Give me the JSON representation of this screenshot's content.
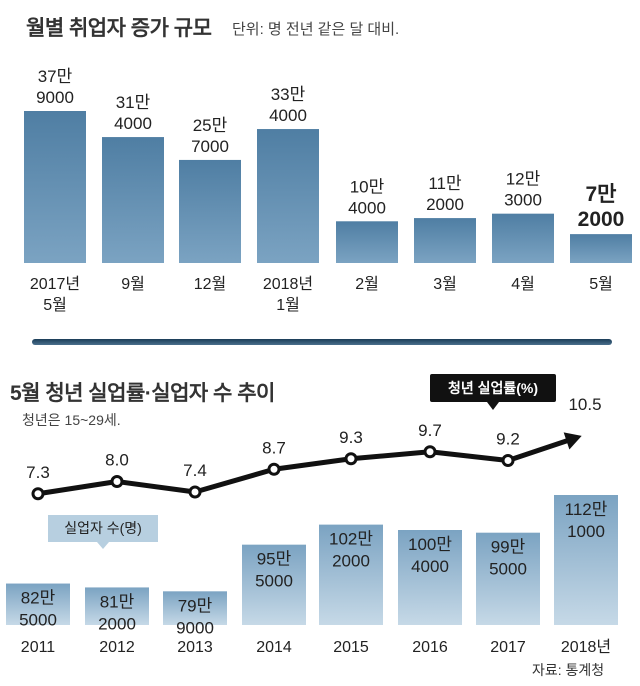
{
  "header": {
    "title": "월별 취업자 증가 규모",
    "unit": "단위: 명   전년 같은 달 대비."
  },
  "section2": {
    "title": "5월 청년 실업률·실업자 수 추이",
    "note": "청년은 15~29세.",
    "unemployed_callout": "실업자 수(명)",
    "rate_callout": "청년 실업률(%)"
  },
  "source": "자료: 통계청",
  "colors": {
    "bar_top": "#7ba3c2",
    "bar_bottom": "#c6d9e7",
    "line": "#111111",
    "marker_fill": "#ffffff"
  },
  "chart_data": [
    {
      "type": "bar",
      "title": "월별 취업자 증가 규모",
      "unit": "명",
      "categories": [
        [
          "2017년",
          "5월"
        ],
        [
          "9월"
        ],
        [
          "12월"
        ],
        [
          "2018년",
          "1월"
        ],
        [
          "2월"
        ],
        [
          "3월"
        ],
        [
          "4월"
        ],
        [
          "5월"
        ]
      ],
      "values": [
        379000,
        314000,
        257000,
        334000,
        104000,
        112000,
        123000,
        72000
      ],
      "value_labels": [
        [
          "37만",
          "9000"
        ],
        [
          "31만",
          "4000"
        ],
        [
          "25만",
          "7000"
        ],
        [
          "33만",
          "4000"
        ],
        [
          "10만",
          "4000"
        ],
        [
          "11만",
          "2000"
        ],
        [
          "12만",
          "3000"
        ],
        [
          "7만",
          "2000"
        ]
      ],
      "highlight_index": 7,
      "ylim": [
        0,
        420000
      ]
    },
    {
      "type": "bar",
      "title": "실업자 수(명)",
      "categories": [
        "2011",
        "2012",
        "2013",
        "2014",
        "2015",
        "2016",
        "2017",
        "2018년"
      ],
      "values": [
        825000,
        812000,
        799000,
        955000,
        1022000,
        1004000,
        995000,
        1121000
      ],
      "value_labels": [
        [
          "82만",
          "5000"
        ],
        [
          "81만",
          "2000"
        ],
        [
          "79만",
          "9000"
        ],
        [
          "95만",
          "5000"
        ],
        [
          "102만",
          "2000"
        ],
        [
          "100만",
          "4000"
        ],
        [
          "99만",
          "5000"
        ],
        [
          "112만",
          "1000"
        ]
      ]
    },
    {
      "type": "line",
      "title": "청년 실업률(%)",
      "categories": [
        "2011",
        "2012",
        "2013",
        "2014",
        "2015",
        "2016",
        "2017",
        "2018년"
      ],
      "values": [
        7.3,
        8.0,
        7.4,
        8.7,
        9.3,
        9.7,
        9.2,
        10.5
      ],
      "value_labels": [
        "7.3",
        "8.0",
        "7.4",
        "8.7",
        "9.3",
        "9.7",
        "9.2",
        "10.5"
      ]
    }
  ]
}
